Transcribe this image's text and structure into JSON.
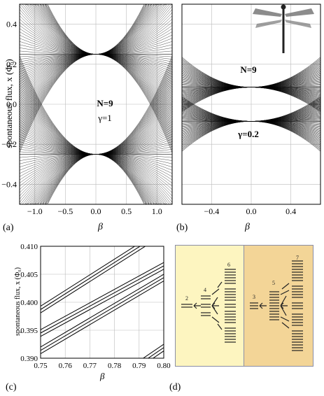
{
  "panels": {
    "a": {
      "label": "(a)",
      "ylabel": "spontaneous flux, x (Φ₀)",
      "xlabel": "β",
      "yticks": [
        "0.4",
        "0.2",
        "0.0",
        "−0.2",
        "−0.4"
      ],
      "xticks": [
        "−1.0",
        "−0.5",
        "0.0",
        "0.5",
        "1.0"
      ],
      "annotations": [
        "N=9",
        "γ=1"
      ]
    },
    "b": {
      "label": "(b)",
      "xlabel": "β",
      "xticks": [
        "−0.4",
        "0.0",
        "0.4"
      ],
      "annotations": [
        "N=9",
        "γ=0.2"
      ]
    },
    "c": {
      "label": "(c)",
      "ylabel": "spontaneous flux, x (Φ₀)",
      "xlabel": "β",
      "yticks": [
        "0.410",
        "0.405",
        "0.400",
        "0.395",
        "0.390"
      ],
      "xticks": [
        "0.75",
        "0.76",
        "0.77",
        "0.78",
        "0.79",
        "0.80"
      ]
    },
    "d": {
      "label": "(d)",
      "left_numbers": [
        "2",
        "4",
        "6"
      ],
      "right_numbers": [
        "3",
        "5",
        "7"
      ],
      "colors": {
        "left_bg": "#fdf5c0",
        "right_bg": "#f3d597",
        "border": "#8a8ea6"
      }
    }
  },
  "chart_data": [
    {
      "type": "line",
      "panel": "c",
      "xlabel": "β",
      "ylabel": "spontaneous flux, x (Φ₀)",
      "xlim": [
        0.75,
        0.8
      ],
      "ylim": [
        0.39,
        0.41
      ],
      "series": [
        {
          "x": [
            0.75,
            0.8
          ],
          "y": [
            0.3993,
            0.4133
          ]
        },
        {
          "x": [
            0.75,
            0.8
          ],
          "y": [
            0.3987,
            0.4127
          ]
        },
        {
          "x": [
            0.75,
            0.8
          ],
          "y": [
            0.3981,
            0.4121
          ]
        },
        {
          "x": [
            0.75,
            0.8
          ],
          "y": [
            0.3951,
            0.4071
          ]
        },
        {
          "x": [
            0.75,
            0.8
          ],
          "y": [
            0.3945,
            0.4065
          ]
        },
        {
          "x": [
            0.75,
            0.8
          ],
          "y": [
            0.3939,
            0.4059
          ]
        },
        {
          "x": [
            0.75,
            0.8
          ],
          "y": [
            0.392,
            0.405
          ]
        },
        {
          "x": [
            0.75,
            0.8
          ],
          "y": [
            0.3914,
            0.4044
          ]
        },
        {
          "x": [
            0.75,
            0.8
          ],
          "y": [
            0.3908,
            0.4038
          ]
        },
        {
          "x": [
            0.79,
            0.8
          ],
          "y": [
            0.3895,
            0.3925
          ]
        },
        {
          "x": [
            0.79,
            0.8
          ],
          "y": [
            0.3889,
            0.3919
          ]
        },
        {
          "x": [
            0.79,
            0.8
          ],
          "y": [
            0.3883,
            0.3913
          ]
        }
      ]
    }
  ]
}
